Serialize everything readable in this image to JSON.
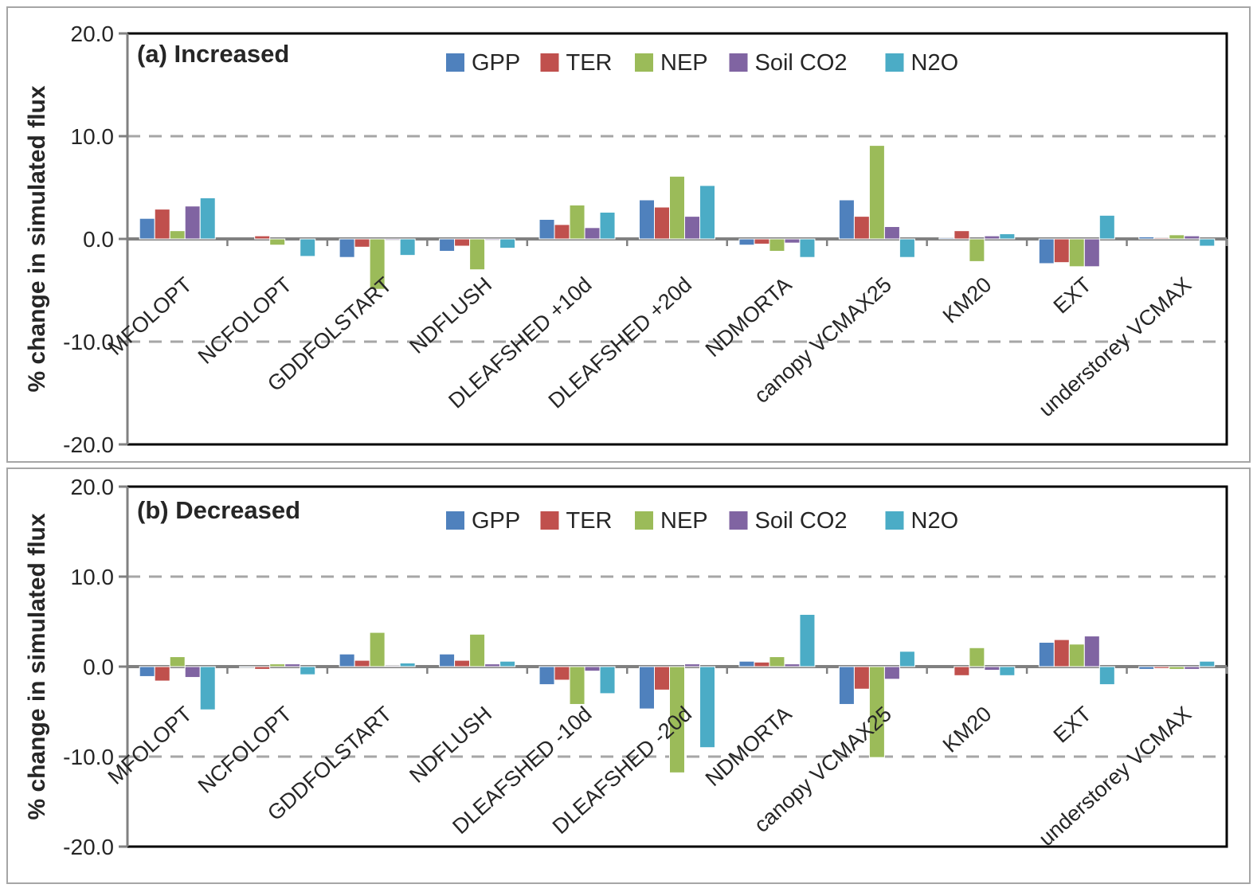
{
  "chart_data": [
    {
      "type": "bar",
      "title": "(a) Increased",
      "ylabel": "% change in simulated flux",
      "ylim": [
        -20,
        20
      ],
      "ytick_labels": [
        "20.0",
        "10.0",
        "0.0",
        "-10.0",
        "-20.0"
      ],
      "ytick_values": [
        20,
        10,
        0,
        -10,
        -20
      ],
      "gridlines": [
        10,
        -10
      ],
      "grid_style": "dashed",
      "legend_position": "top-center",
      "categories": [
        "MFOLOPT",
        "NCFOLOPT",
        "GDDFOLSTART",
        "NDFLUSH",
        "DLEAFSHED +10d",
        "DLEAFSHED +20d",
        "NDMORTA",
        "canopy VCMAX25",
        "KM20",
        "EXT",
        "understorey VCMAX"
      ],
      "series": [
        {
          "name": "GPP",
          "color": "#4F81BD",
          "values": [
            2.0,
            0.0,
            -1.8,
            -1.2,
            1.9,
            3.8,
            -0.6,
            3.8,
            0.1,
            -2.4,
            0.2
          ]
        },
        {
          "name": "TER",
          "color": "#C0504D",
          "values": [
            2.9,
            0.3,
            -0.8,
            -0.7,
            1.4,
            3.1,
            -0.5,
            2.2,
            0.8,
            -2.3,
            0.1
          ]
        },
        {
          "name": "NEP",
          "color": "#9BBB59",
          "values": [
            0.8,
            -0.6,
            -4.9,
            -3.0,
            3.3,
            6.1,
            -1.2,
            9.1,
            -2.2,
            -2.7,
            0.4
          ]
        },
        {
          "name": "Soil CO2",
          "color": "#8064A2",
          "values": [
            3.2,
            0.0,
            -0.1,
            -0.1,
            1.1,
            2.2,
            -0.4,
            1.2,
            0.3,
            -2.7,
            0.3
          ]
        },
        {
          "name": "N2O",
          "color": "#4BACC6",
          "values": [
            4.0,
            -1.7,
            -1.6,
            -0.9,
            2.6,
            5.2,
            -1.8,
            -1.8,
            0.5,
            2.3,
            -0.7
          ]
        }
      ]
    },
    {
      "type": "bar",
      "title": "(b) Decreased",
      "ylabel": "% change in simulated flux",
      "ylim": [
        -20,
        20
      ],
      "ytick_labels": [
        "20.0",
        "10.0",
        "0.0",
        "-10.0",
        "-20.0"
      ],
      "ytick_values": [
        20,
        10,
        0,
        -10,
        -20
      ],
      "gridlines": [
        10,
        -10
      ],
      "grid_style": "dashed",
      "legend_position": "top-center",
      "categories": [
        "MFOLOPT",
        "NCFOLOPT",
        "GDDFOLSTART",
        "NDFLUSH",
        "DLEAFSHED -10d",
        "DLEAFSHED -20d",
        "NDMORTA",
        "canopy VCMAX25",
        "KM20",
        "EXT",
        "understorey VCMAX"
      ],
      "series": [
        {
          "name": "GPP",
          "color": "#4F81BD",
          "values": [
            -1.1,
            -0.1,
            1.4,
            1.4,
            -2.0,
            -4.7,
            0.6,
            -4.2,
            0.0,
            2.7,
            -0.3
          ]
        },
        {
          "name": "TER",
          "color": "#C0504D",
          "values": [
            -1.6,
            -0.3,
            0.7,
            0.7,
            -1.5,
            -2.6,
            0.5,
            -2.5,
            -1.0,
            3.0,
            -0.2
          ]
        },
        {
          "name": "NEP",
          "color": "#9BBB59",
          "values": [
            1.1,
            0.3,
            3.8,
            3.6,
            -4.2,
            -11.8,
            1.1,
            -10.1,
            2.1,
            2.5,
            -0.3
          ]
        },
        {
          "name": "Soil CO2",
          "color": "#8064A2",
          "values": [
            -1.2,
            0.3,
            0.1,
            0.3,
            -0.5,
            0.3,
            0.3,
            -1.4,
            -0.4,
            3.4,
            -0.3
          ]
        },
        {
          "name": "N2O",
          "color": "#4BACC6",
          "values": [
            -4.8,
            -0.9,
            0.4,
            0.6,
            -3.0,
            -9.0,
            5.8,
            1.7,
            -1.0,
            -2.0,
            0.6
          ]
        }
      ]
    }
  ],
  "style_colors": {
    "axis": "#808080",
    "gridline": "#a6a6a6",
    "frame": "#000000",
    "text": "#262626"
  }
}
